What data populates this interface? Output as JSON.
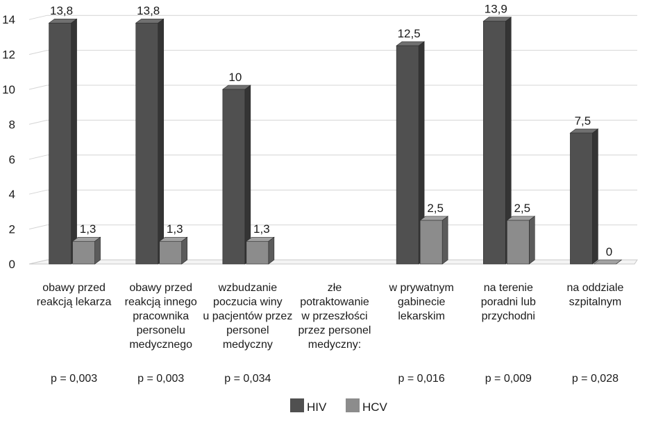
{
  "chart_data": {
    "type": "bar",
    "categories": [
      [
        "obawy przed",
        "reakcją lekarza"
      ],
      [
        "obawy przed",
        "reakcją innego",
        "pracownika",
        "personelu",
        "medycznego"
      ],
      [
        "wzbudzanie",
        "poczucia winy",
        "u pacjentów przez",
        "personel",
        "medyczny"
      ],
      [
        "złe",
        "potraktowanie",
        "w przeszłości",
        "przez personel",
        "medyczny:"
      ],
      [
        "w prywatnym",
        "gabinecie",
        "lekarskim"
      ],
      [
        "na terenie",
        "poradni lub",
        "przychodni"
      ],
      [
        "na oddziale",
        "szpitalnym"
      ]
    ],
    "p_values": [
      "p = 0,003",
      "p = 0,003",
      "p = 0,034",
      "",
      "p = 0,016",
      "p = 0,009",
      "p = 0,028"
    ],
    "series": [
      {
        "name": "HIV",
        "color": "#505050",
        "values": [
          13.8,
          13.8,
          10,
          null,
          12.5,
          13.9,
          7.5
        ],
        "labels": [
          "13,8",
          "13,8",
          "10",
          "",
          "12,5",
          "13,9",
          "7,5"
        ]
      },
      {
        "name": "HCV",
        "color": "#8c8c8c",
        "values": [
          1.3,
          1.3,
          1.3,
          null,
          2.5,
          2.5,
          0
        ],
        "labels": [
          "1,3",
          "1,3",
          "1,3",
          "",
          "2,5",
          "2,5",
          "0"
        ]
      }
    ],
    "ylim": [
      0,
      14
    ],
    "yticks": [
      0,
      2,
      4,
      6,
      8,
      10,
      12,
      14
    ],
    "grid": true,
    "legend": "bottom-center",
    "style": "3d-bar"
  }
}
